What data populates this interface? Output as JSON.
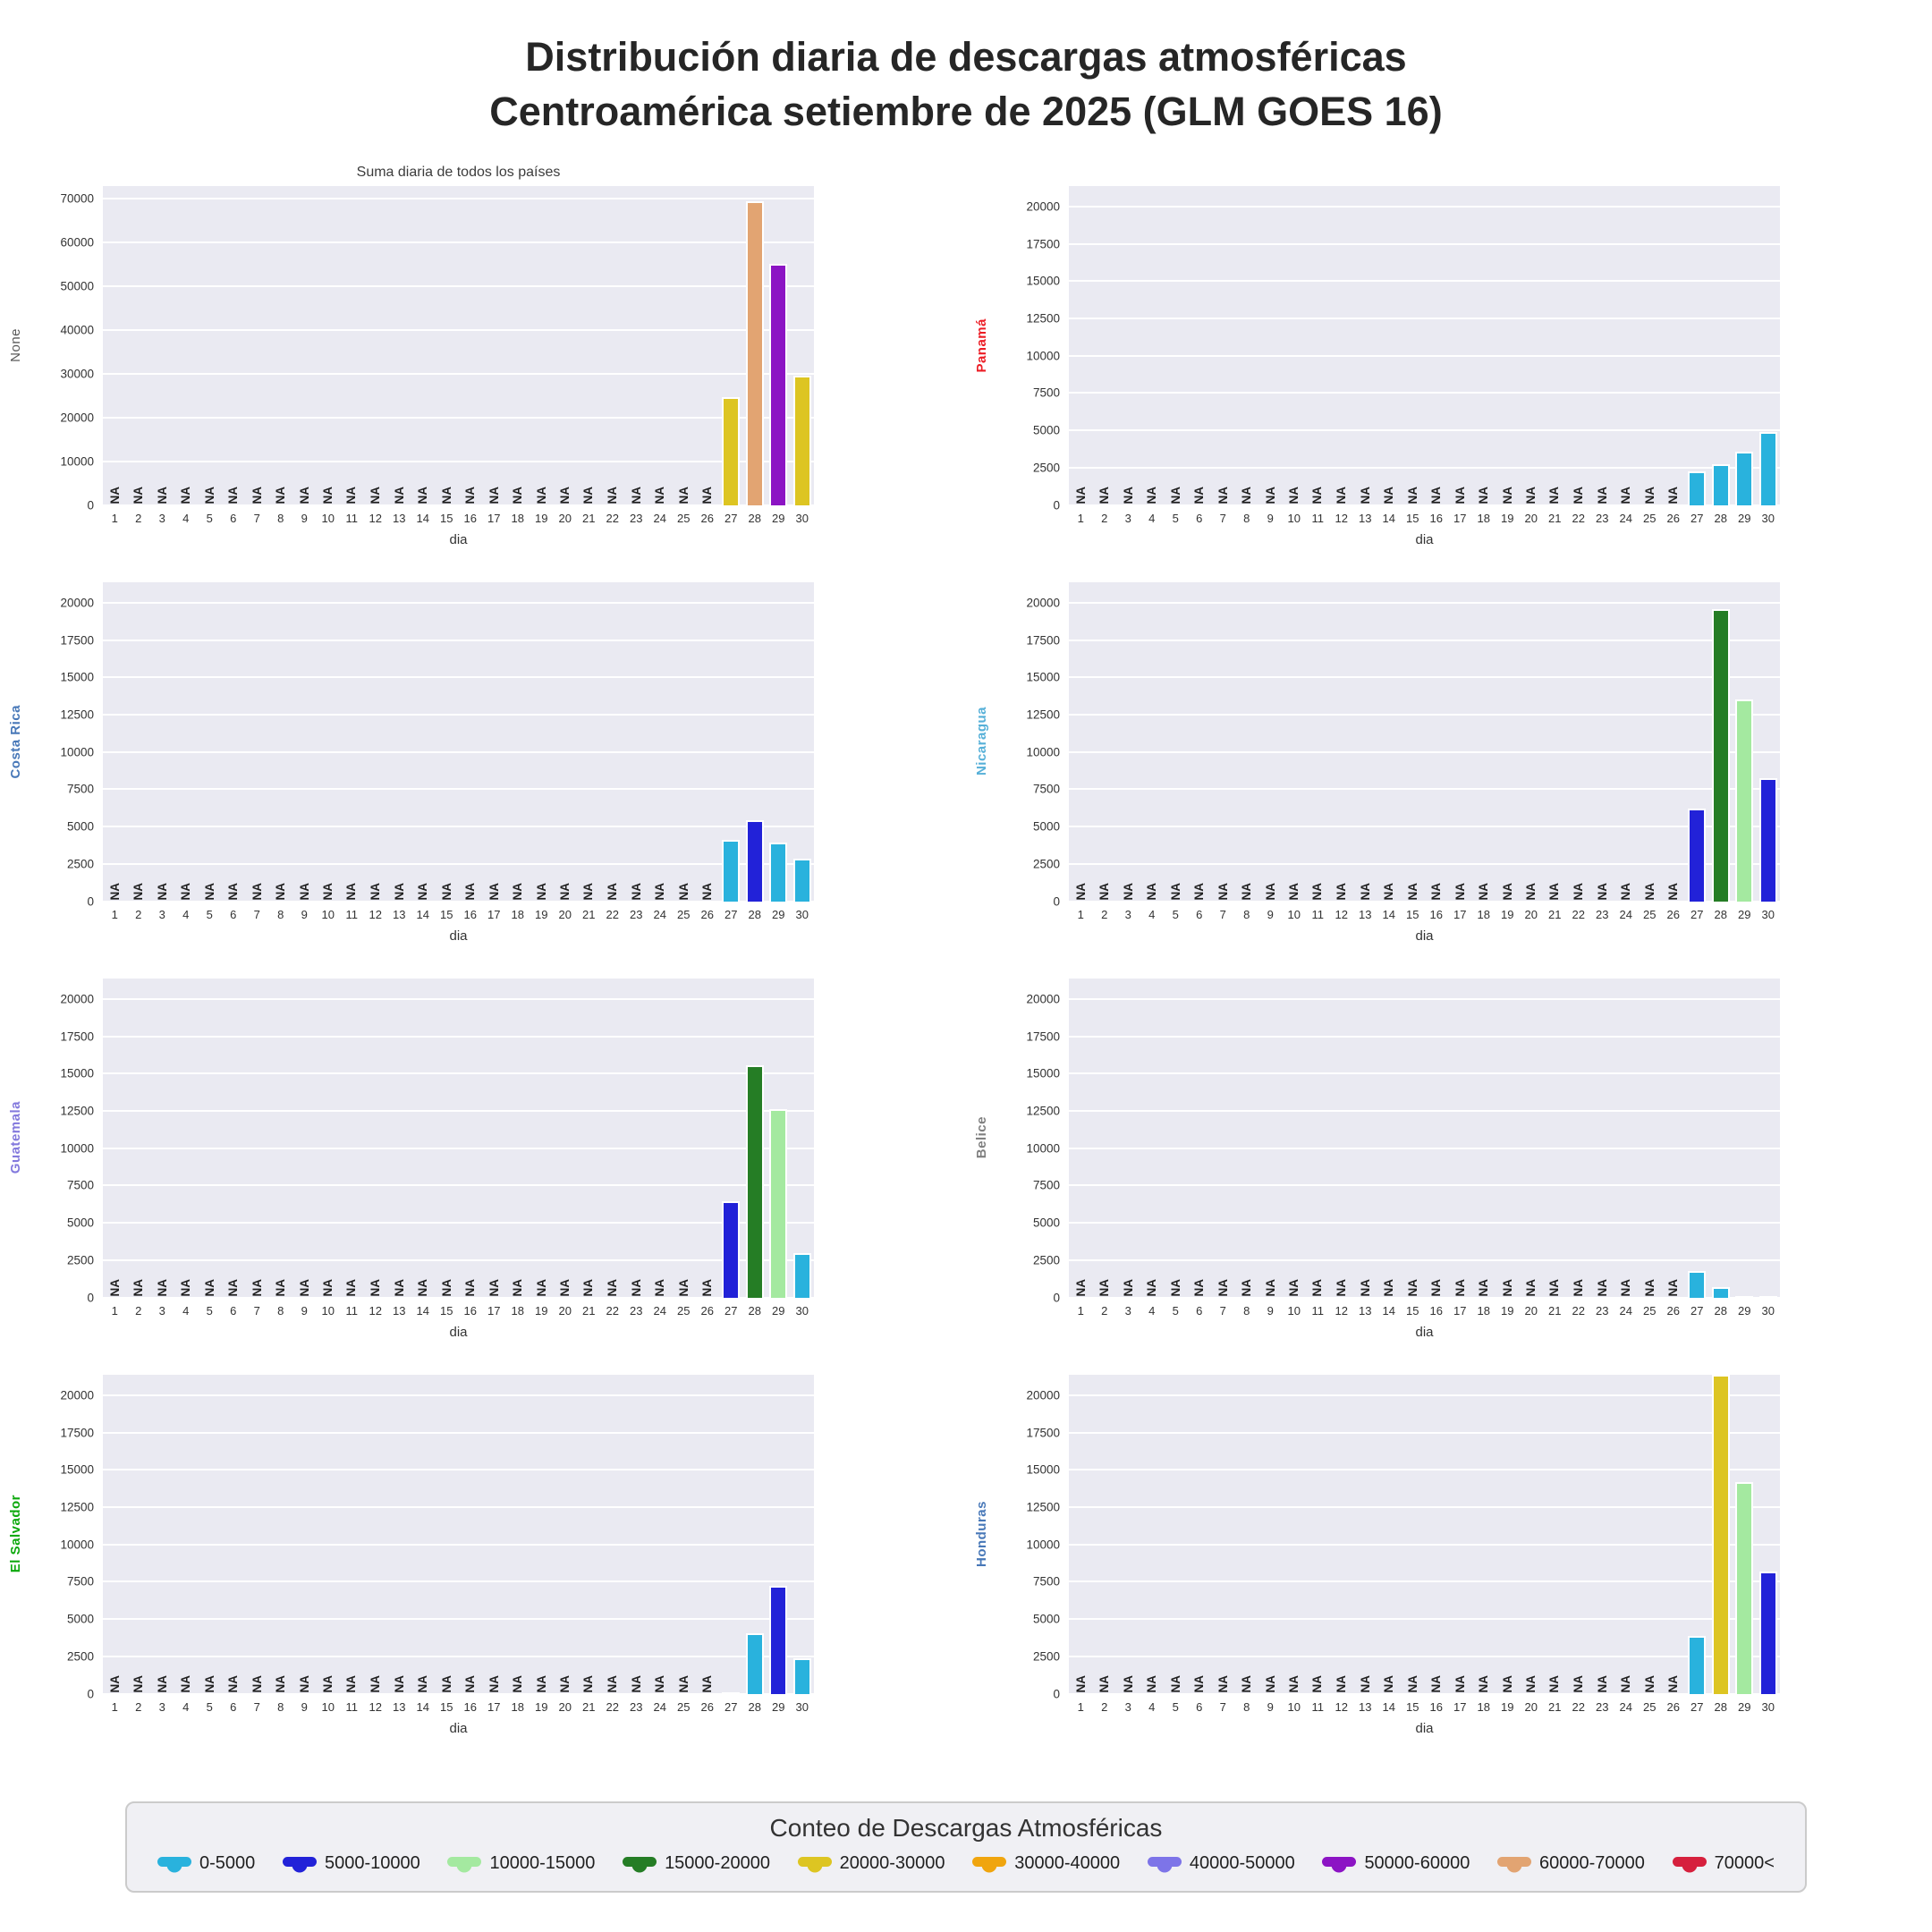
{
  "page_title": {
    "line1": "Distribución diaria de descargas atmosféricas",
    "line2": "Centroamérica setiembre de 2025 (GLM GOES 16)"
  },
  "axis": {
    "xlabel": "dia",
    "na_label": "NA",
    "days": [
      1,
      2,
      3,
      4,
      5,
      6,
      7,
      8,
      9,
      10,
      11,
      12,
      13,
      14,
      15,
      16,
      17,
      18,
      19,
      20,
      21,
      22,
      23,
      24,
      25,
      26,
      27,
      28,
      29,
      30
    ]
  },
  "legend": {
    "title": "Conteo de Descargas Atmosféricas",
    "items": [
      {
        "label": "0-5000",
        "min": 0,
        "max": 5000,
        "color": "#29b2dd"
      },
      {
        "label": "5000-10000",
        "min": 5000,
        "max": 10000,
        "color": "#2222d8"
      },
      {
        "label": "10000-15000",
        "min": 10000,
        "max": 15000,
        "color": "#a4e9a0"
      },
      {
        "label": "15000-20000",
        "min": 15000,
        "max": 20000,
        "color": "#257d25"
      },
      {
        "label": "20000-30000",
        "min": 20000,
        "max": 30000,
        "color": "#ddc522"
      },
      {
        "label": "30000-40000",
        "min": 30000,
        "max": 40000,
        "color": "#f0a50e"
      },
      {
        "label": "40000-50000",
        "min": 40000,
        "max": 50000,
        "color": "#7d74e8"
      },
      {
        "label": "50000-60000",
        "min": 50000,
        "max": 60000,
        "color": "#8c14c4"
      },
      {
        "label": "60000-70000",
        "min": 60000,
        "max": 70000,
        "color": "#e2a472"
      },
      {
        "label": "70000<",
        "min": 70000,
        "max": null,
        "color": "#d6203d"
      }
    ]
  },
  "chart_data": [
    {
      "type": "bar",
      "name": "suma-todos-los-paises",
      "title": "Suma diaria de todos los países",
      "ylabel": "None",
      "ylabel_color": "#595959",
      "ylim": [
        0,
        73000
      ],
      "yticks": [
        0,
        10000,
        20000,
        30000,
        40000,
        50000,
        60000,
        70000
      ],
      "na_through_day": 26,
      "bars": [
        {
          "day": 27,
          "value": 24650
        },
        {
          "day": 28,
          "value": 69500
        },
        {
          "day": 29,
          "value": 55150
        },
        {
          "day": 30,
          "value": 29550
        }
      ]
    },
    {
      "type": "bar",
      "name": "panama",
      "title": "",
      "ylabel": "Panamá",
      "ylabel_color": "#ec1c24",
      "ylim": [
        0,
        21400
      ],
      "yticks": [
        0,
        2500,
        5000,
        7500,
        10000,
        12500,
        15000,
        17500,
        20000
      ],
      "na_through_day": 26,
      "bars": [
        {
          "day": 27,
          "value": 2250
        },
        {
          "day": 28,
          "value": 2700
        },
        {
          "day": 29,
          "value": 3550
        },
        {
          "day": 30,
          "value": 4900
        }
      ]
    },
    {
      "type": "bar",
      "name": "costa-rica",
      "title": "",
      "ylabel": "Costa Rica",
      "ylabel_color": "#4878b8",
      "ylim": [
        0,
        21400
      ],
      "yticks": [
        0,
        2500,
        5000,
        7500,
        10000,
        12500,
        15000,
        17500,
        20000
      ],
      "na_through_day": 26,
      "bars": [
        {
          "day": 27,
          "value": 4100
        },
        {
          "day": 28,
          "value": 5400
        },
        {
          "day": 29,
          "value": 3900
        },
        {
          "day": 30,
          "value": 2850
        }
      ]
    },
    {
      "type": "bar",
      "name": "nicaragua",
      "title": "",
      "ylabel": "Nicaragua",
      "ylabel_color": "#56b0d8",
      "ylim": [
        0,
        21400
      ],
      "yticks": [
        0,
        2500,
        5000,
        7500,
        10000,
        12500,
        15000,
        17500,
        20000
      ],
      "na_through_day": 26,
      "bars": [
        {
          "day": 27,
          "value": 6200
        },
        {
          "day": 28,
          "value": 19600
        },
        {
          "day": 29,
          "value": 13500
        },
        {
          "day": 30,
          "value": 8250
        }
      ]
    },
    {
      "type": "bar",
      "name": "guatemala",
      "title": "",
      "ylabel": "Guatemala",
      "ylabel_color": "#8379dd",
      "ylim": [
        0,
        21400
      ],
      "yticks": [
        0,
        2500,
        5000,
        7500,
        10000,
        12500,
        15000,
        17500,
        20000
      ],
      "na_through_day": 26,
      "bars": [
        {
          "day": 27,
          "value": 6450
        },
        {
          "day": 28,
          "value": 15550
        },
        {
          "day": 29,
          "value": 12600
        },
        {
          "day": 30,
          "value": 2950
        }
      ]
    },
    {
      "type": "bar",
      "name": "belice",
      "title": "",
      "ylabel": "Belice",
      "ylabel_color": "#7f7f7f",
      "ylim": [
        0,
        21400
      ],
      "yticks": [
        0,
        2500,
        5000,
        7500,
        10000,
        12500,
        15000,
        17500,
        20000
      ],
      "na_through_day": 26,
      "bars": [
        {
          "day": 27,
          "value": 1750
        },
        {
          "day": 28,
          "value": 700
        },
        {
          "day": 29,
          "value": 120
        },
        {
          "day": 30,
          "value": 40
        }
      ]
    },
    {
      "type": "bar",
      "name": "el-salvador",
      "title": "",
      "ylabel": "El Salvador",
      "ylabel_color": "#0ca80c",
      "ylim": [
        0,
        21400
      ],
      "yticks": [
        0,
        2500,
        5000,
        7500,
        10000,
        12500,
        15000,
        17500,
        20000
      ],
      "na_through_day": 26,
      "bars": [
        {
          "day": 27,
          "value": 50
        },
        {
          "day": 28,
          "value": 4050
        },
        {
          "day": 29,
          "value": 7250
        },
        {
          "day": 30,
          "value": 2350
        }
      ]
    },
    {
      "type": "bar",
      "name": "honduras",
      "title": "",
      "ylabel": "Honduras",
      "ylabel_color": "#4878b8",
      "ylim": [
        0,
        21400
      ],
      "yticks": [
        0,
        2500,
        5000,
        7500,
        10000,
        12500,
        15000,
        17500,
        20000
      ],
      "na_through_day": 26,
      "bars": [
        {
          "day": 27,
          "value": 3850
        },
        {
          "day": 28,
          "value": 21500
        },
        {
          "day": 29,
          "value": 14200
        },
        {
          "day": 30,
          "value": 8200
        }
      ]
    }
  ]
}
